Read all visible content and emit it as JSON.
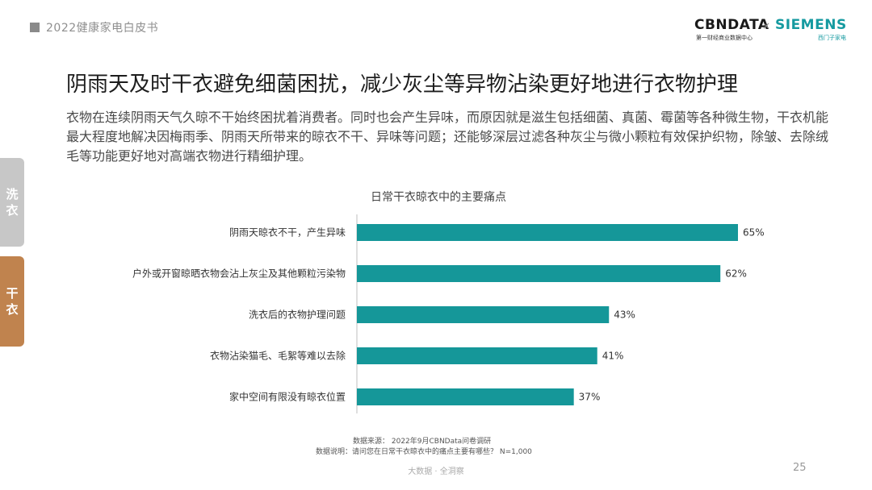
{
  "header": {
    "report_title": "2022健康家电白皮书",
    "logo_cbn": "CBNDATA",
    "logo_cbn_sub": "第一财经商业数据中心",
    "logo_separator": "×",
    "logo_siemens": "SIEMENS",
    "logo_siemens_sub": "西门子家电"
  },
  "headline": "阴雨天及时干衣避免细菌困扰，减少灰尘等异物沾染更好地进行衣物护理",
  "body_text": "衣物在连续阴雨天气久晾不干始终困扰着消费者。同时也会产生异味，而原因就是滋生包括细菌、真菌、霉菌等各种微生物，干衣机能最大程度地解决因梅雨季、阴雨天所带来的晾衣不干、异味等问题；还能够深层过滤各种灰尘与微小颗粒有效保护织物，除皱、去除绒毛等功能更好地对高端衣物进行精细护理。",
  "side_tabs": {
    "wash": "洗衣",
    "dry": "干衣"
  },
  "chart_data": {
    "type": "bar",
    "orientation": "horizontal",
    "title": "日常干衣晾衣中的主要痛点",
    "categories": [
      "阴雨天晾衣不干，产生异味",
      "户外或开窗晾晒衣物会沾上灰尘及其他颗粒污染物",
      "洗衣后的衣物护理问题",
      "衣物沾染猫毛、毛絮等难以去除",
      "家中空间有限没有晾衣位置"
    ],
    "values": [
      65,
      62,
      43,
      41,
      37
    ],
    "value_labels": [
      "65%",
      "62%",
      "43%",
      "41%",
      "37%"
    ],
    "unit": "%",
    "xlim": [
      0,
      100
    ],
    "grid": false,
    "bar_color": "#159799"
  },
  "notes": {
    "source": "数据来源：  2022年9月CBNData问卷调研",
    "question": "数据说明：请问您在日常干衣晾衣中的痛点主要有哪些？  N=1,000"
  },
  "footer": {
    "brand": "大数据 · 全洞察",
    "page_number": "25"
  }
}
